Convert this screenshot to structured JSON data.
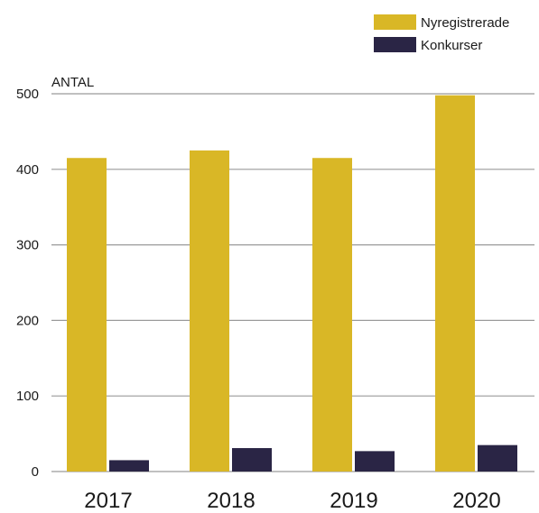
{
  "chart_data": {
    "type": "bar",
    "ylabel": "ANTAL",
    "xlabel": "",
    "categories": [
      "2017",
      "2018",
      "2019",
      "2020"
    ],
    "series": [
      {
        "name": "Nyregistrerade",
        "color": "#d9b726",
        "values": [
          415,
          425,
          415,
          498
        ]
      },
      {
        "name": "Konkurser",
        "color": "#2a2545",
        "values": [
          15,
          31,
          27,
          35
        ]
      }
    ],
    "ylim": [
      0,
      500
    ],
    "yticks": [
      0,
      100,
      200,
      300,
      400,
      500
    ],
    "grid": true,
    "legend_position": "top-right"
  }
}
